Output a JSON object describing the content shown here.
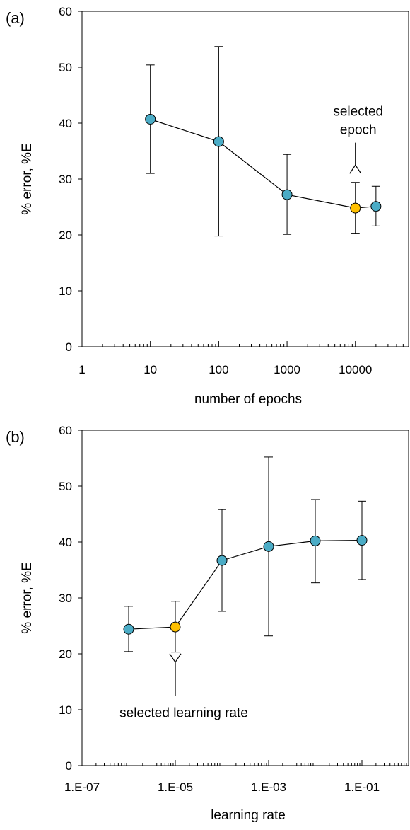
{
  "chart_data": [
    {
      "panel_label": "(a)",
      "type": "scatter",
      "xscale": "log",
      "xlim": [
        1,
        60000
      ],
      "ylim": [
        0,
        60
      ],
      "xlabel": "number of epochs",
      "ylabel": "% error, %E",
      "xticks": [
        1,
        10,
        100,
        1000,
        10000
      ],
      "xtick_labels": [
        "1",
        "10",
        "100",
        "1000",
        "10000"
      ],
      "yticks": [
        0,
        10,
        20,
        30,
        40,
        50,
        60
      ],
      "ytick_labels": [
        "0",
        "10",
        "20",
        "30",
        "40",
        "50",
        "60"
      ],
      "grid": false,
      "series": [
        {
          "x": [
            10,
            100,
            1000,
            10000,
            20000
          ],
          "y": [
            40.7,
            36.7,
            27.2,
            24.8,
            25.1
          ],
          "err_low": [
            31.0,
            19.8,
            20.1,
            20.3,
            21.6
          ],
          "err_high": [
            50.4,
            53.7,
            34.4,
            29.4,
            28.7
          ],
          "colors": [
            "#4bacc6",
            "#4bacc6",
            "#4bacc6",
            "#ffc000",
            "#4bacc6"
          ]
        }
      ],
      "annotation": {
        "lines": [
          "selected",
          "epoch"
        ],
        "x": 10000,
        "arrow_from_y": 36.5,
        "arrow_to_y": 32.5,
        "direction": "down"
      }
    },
    {
      "panel_label": "(b)",
      "type": "scatter",
      "xscale": "log",
      "xlim": [
        1e-07,
        1
      ],
      "ylim": [
        0,
        60
      ],
      "xlabel": "learning rate",
      "ylabel": "% error, %E",
      "xticks": [
        1e-07,
        1e-05,
        0.001,
        0.1
      ],
      "xtick_labels": [
        "1.E-07",
        "1.E-05",
        "1.E-03",
        "1.E-01"
      ],
      "yticks": [
        0,
        10,
        20,
        30,
        40,
        50,
        60
      ],
      "ytick_labels": [
        "0",
        "10",
        "20",
        "30",
        "40",
        "50",
        "60"
      ],
      "grid": false,
      "series": [
        {
          "x": [
            1e-06,
            1e-05,
            0.0001,
            0.001,
            0.01,
            0.1
          ],
          "y": [
            24.4,
            24.8,
            36.7,
            39.2,
            40.2,
            40.3
          ],
          "err_low": [
            20.4,
            20.3,
            27.6,
            23.2,
            32.7,
            33.3
          ],
          "err_high": [
            28.5,
            29.4,
            45.8,
            55.2,
            47.6,
            47.3
          ],
          "colors": [
            "#4bacc6",
            "#ffc000",
            "#4bacc6",
            "#4bacc6",
            "#4bacc6",
            "#4bacc6"
          ]
        }
      ],
      "annotation": {
        "lines": [
          "selected learning rate"
        ],
        "x": 1e-05,
        "arrow_from_y": 12.5,
        "arrow_to_y": 18.5,
        "direction": "up"
      }
    }
  ]
}
